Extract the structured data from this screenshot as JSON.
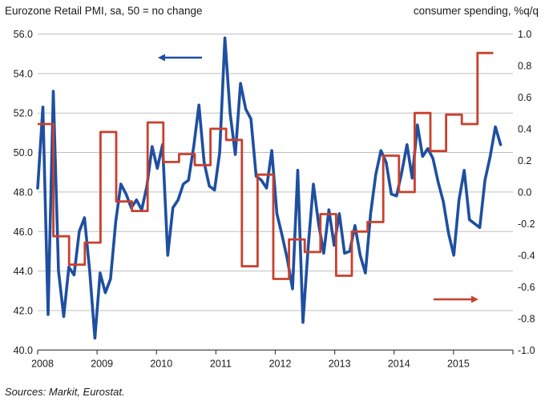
{
  "header": {
    "left_title": "Eurozone Retail PMI, sa, 50 = no change",
    "right_title": "consumer spending, %q/q"
  },
  "footer": {
    "source": "Sources: Markit, Eurostat."
  },
  "colors": {
    "pmi_line": "#1e4fa1",
    "spending_line": "#c8402e",
    "gridline": "#bfbfbf",
    "axis_line": "#404040",
    "text": "#1a1a1a"
  },
  "chart_data": {
    "type": "line",
    "title": "Eurozone Retail PMI vs consumer spending",
    "left_axis": {
      "label": "Eurozone Retail PMI, sa, 50 = no change",
      "min": 40,
      "max": 56,
      "tick_values": [
        56,
        54,
        52,
        50,
        48,
        46,
        44,
        42,
        40
      ],
      "tick_labels": [
        "56.0",
        "54.0",
        "52.0",
        "50.0",
        "48.0",
        "46.0",
        "44.0",
        "42.0",
        "40.0"
      ]
    },
    "right_axis": {
      "label": "consumer spending, %q/q",
      "min": -1.0,
      "max": 1.0,
      "tick_values": [
        1.0,
        0.8,
        0.6,
        0.4,
        0.2,
        0.0,
        -0.2,
        -0.4,
        -0.6,
        -0.8,
        -1.0
      ],
      "tick_labels": [
        "1.0",
        "0.8",
        "0.6",
        "0.4",
        "0.2",
        "0.0",
        "-0.2",
        "-0.4",
        "-0.6",
        "-0.8",
        "-1.0"
      ]
    },
    "x_axis": {
      "year_labels": [
        "2008",
        "2009",
        "2010",
        "2011",
        "2012",
        "2013",
        "2014",
        "2015"
      ]
    },
    "grid": "horizontal-only",
    "legend": "none",
    "series": [
      {
        "name": "Eurozone Retail PMI (monthly, left axis)",
        "axis": "left",
        "freq": "monthly",
        "start": "2008-01",
        "values": [
          48.2,
          52.3,
          41.8,
          53.1,
          44.0,
          41.7,
          44.2,
          43.8,
          46.0,
          46.7,
          44.0,
          40.6,
          43.9,
          42.9,
          43.6,
          46.5,
          48.4,
          47.9,
          47.2,
          47.6,
          47.1,
          48.3,
          50.3,
          49.2,
          50.4,
          44.8,
          47.2,
          47.6,
          48.4,
          48.6,
          50.3,
          52.4,
          49.5,
          48.3,
          48.1,
          50.0,
          55.8,
          52.0,
          49.9,
          53.5,
          52.2,
          51.7,
          48.8,
          48.6,
          48.2,
          50.1,
          46.9,
          45.8,
          44.6,
          43.1,
          49.1,
          41.4,
          45.2,
          48.4,
          46.4,
          44.9,
          47.1,
          45.3,
          46.9,
          44.9,
          45.0,
          46.3,
          44.8,
          43.9,
          46.9,
          48.9,
          50.1,
          49.5,
          47.9,
          47.8,
          49.0,
          50.4,
          48.7,
          51.4,
          49.8,
          50.2,
          49.7,
          48.5,
          47.5,
          45.9,
          44.8,
          47.6,
          49.1,
          46.6,
          46.4,
          46.2,
          48.6,
          49.8,
          51.3,
          50.4
        ]
      },
      {
        "name": "consumer spending, %q/q (quarterly, right axis)",
        "axis": "right",
        "freq": "quarterly",
        "start": "2008-Q1",
        "values": [
          0.43,
          -0.28,
          -0.46,
          -0.32,
          0.38,
          -0.06,
          -0.12,
          0.44,
          0.19,
          0.24,
          0.17,
          0.4,
          0.33,
          -0.47,
          0.11,
          -0.55,
          -0.3,
          -0.38,
          -0.14,
          -0.53,
          -0.25,
          -0.19,
          0.23,
          0.0,
          0.5,
          0.26,
          0.49,
          0.43,
          0.88
        ]
      }
    ],
    "annotations": [
      {
        "name": "pmi-series-arrow",
        "icon": "left-arrow-icon",
        "direction": "left",
        "color": "#1e4fa1",
        "x_tail": 252,
        "x_head": 197,
        "y": 72
      },
      {
        "name": "spending-series-arrow",
        "icon": "right-arrow-icon",
        "direction": "right",
        "color": "#c8402e",
        "x_tail": 541,
        "x_head": 597,
        "y": 374
      }
    ]
  }
}
